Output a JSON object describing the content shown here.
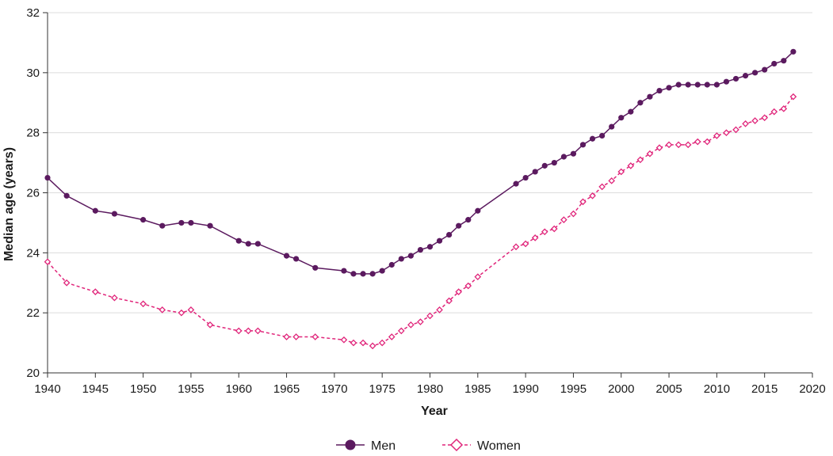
{
  "chart_data": {
    "type": "line",
    "xlabel": "Year",
    "ylabel": "Median age (years)",
    "xlim": [
      1940,
      2020
    ],
    "ylim": [
      20,
      32
    ],
    "x_ticks": [
      "1940",
      "1945",
      "1950",
      "1955",
      "1960",
      "1965",
      "1970",
      "1975",
      "1980",
      "1985",
      "1990",
      "1995",
      "2000",
      "2005",
      "2010",
      "2015",
      "2020"
    ],
    "y_ticks": [
      "20",
      "22",
      "24",
      "26",
      "28",
      "30",
      "32"
    ],
    "grid": "horizontal",
    "legend_position": "bottom",
    "series": [
      {
        "name": "Men",
        "color": "#5b1a5f",
        "marker": "circle",
        "line": "solid",
        "points": [
          [
            1940,
            26.5
          ],
          [
            1942,
            25.9
          ],
          [
            1945,
            25.4
          ],
          [
            1947,
            25.3
          ],
          [
            1950,
            25.1
          ],
          [
            1952,
            24.9
          ],
          [
            1954,
            25.0
          ],
          [
            1955,
            25.0
          ],
          [
            1957,
            24.9
          ],
          [
            1960,
            24.4
          ],
          [
            1961,
            24.3
          ],
          [
            1962,
            24.3
          ],
          [
            1965,
            23.9
          ],
          [
            1966,
            23.8
          ],
          [
            1968,
            23.5
          ],
          [
            1971,
            23.4
          ],
          [
            1972,
            23.3
          ],
          [
            1973,
            23.3
          ],
          [
            1974,
            23.3
          ],
          [
            1975,
            23.4
          ],
          [
            1976,
            23.6
          ],
          [
            1977,
            23.8
          ],
          [
            1978,
            23.9
          ],
          [
            1979,
            24.1
          ],
          [
            1980,
            24.2
          ],
          [
            1981,
            24.4
          ],
          [
            1982,
            24.6
          ],
          [
            1983,
            24.9
          ],
          [
            1984,
            25.1
          ],
          [
            1985,
            25.4
          ],
          [
            1989,
            26.3
          ],
          [
            1990,
            26.5
          ],
          [
            1991,
            26.7
          ],
          [
            1992,
            26.9
          ],
          [
            1993,
            27.0
          ],
          [
            1994,
            27.2
          ],
          [
            1995,
            27.3
          ],
          [
            1996,
            27.6
          ],
          [
            1997,
            27.8
          ],
          [
            1998,
            27.9
          ],
          [
            1999,
            28.2
          ],
          [
            2000,
            28.5
          ],
          [
            2001,
            28.7
          ],
          [
            2002,
            29.0
          ],
          [
            2003,
            29.2
          ],
          [
            2004,
            29.4
          ],
          [
            2005,
            29.5
          ],
          [
            2006,
            29.6
          ],
          [
            2007,
            29.6
          ],
          [
            2008,
            29.6
          ],
          [
            2009,
            29.6
          ],
          [
            2010,
            29.6
          ],
          [
            2011,
            29.7
          ],
          [
            2012,
            29.8
          ],
          [
            2013,
            29.9
          ],
          [
            2014,
            30.0
          ],
          [
            2015,
            30.1
          ],
          [
            2016,
            30.3
          ],
          [
            2017,
            30.4
          ],
          [
            2018,
            30.7
          ]
        ]
      },
      {
        "name": "Women",
        "color": "#e0257a",
        "marker": "diamond",
        "line": "dashed",
        "points": [
          [
            1940,
            23.7
          ],
          [
            1942,
            23.0
          ],
          [
            1945,
            22.7
          ],
          [
            1947,
            22.5
          ],
          [
            1950,
            22.3
          ],
          [
            1952,
            22.1
          ],
          [
            1954,
            22.0
          ],
          [
            1955,
            22.1
          ],
          [
            1957,
            21.6
          ],
          [
            1960,
            21.4
          ],
          [
            1961,
            21.4
          ],
          [
            1962,
            21.4
          ],
          [
            1965,
            21.2
          ],
          [
            1966,
            21.2
          ],
          [
            1968,
            21.2
          ],
          [
            1971,
            21.1
          ],
          [
            1972,
            21.0
          ],
          [
            1973,
            21.0
          ],
          [
            1974,
            20.9
          ],
          [
            1975,
            21.0
          ],
          [
            1976,
            21.2
          ],
          [
            1977,
            21.4
          ],
          [
            1978,
            21.6
          ],
          [
            1979,
            21.7
          ],
          [
            1980,
            21.9
          ],
          [
            1981,
            22.1
          ],
          [
            1982,
            22.4
          ],
          [
            1983,
            22.7
          ],
          [
            1984,
            22.9
          ],
          [
            1985,
            23.2
          ],
          [
            1989,
            24.2
          ],
          [
            1990,
            24.3
          ],
          [
            1991,
            24.5
          ],
          [
            1992,
            24.7
          ],
          [
            1993,
            24.8
          ],
          [
            1994,
            25.1
          ],
          [
            1995,
            25.3
          ],
          [
            1996,
            25.7
          ],
          [
            1997,
            25.9
          ],
          [
            1998,
            26.2
          ],
          [
            1999,
            26.4
          ],
          [
            2000,
            26.7
          ],
          [
            2001,
            26.9
          ],
          [
            2002,
            27.1
          ],
          [
            2003,
            27.3
          ],
          [
            2004,
            27.5
          ],
          [
            2005,
            27.6
          ],
          [
            2006,
            27.6
          ],
          [
            2007,
            27.6
          ],
          [
            2008,
            27.7
          ],
          [
            2009,
            27.7
          ],
          [
            2010,
            27.9
          ],
          [
            2011,
            28.0
          ],
          [
            2012,
            28.1
          ],
          [
            2013,
            28.3
          ],
          [
            2014,
            28.4
          ],
          [
            2015,
            28.5
          ],
          [
            2016,
            28.7
          ],
          [
            2017,
            28.8
          ],
          [
            2018,
            29.2
          ]
        ]
      }
    ]
  }
}
